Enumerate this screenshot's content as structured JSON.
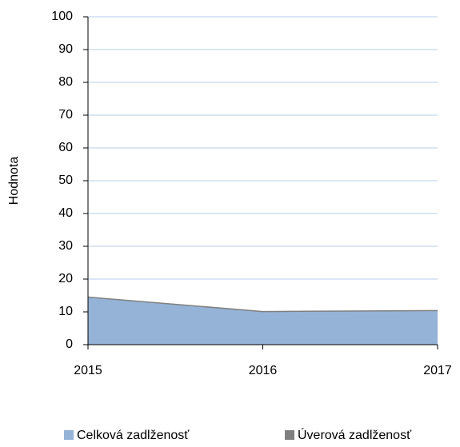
{
  "chart_data": {
    "type": "area",
    "y_label": "Hodnota",
    "x": [
      "2015",
      "2016",
      "2017"
    ],
    "series": [
      {
        "name": "Celková zadlženosť",
        "color": "#95b3d7",
        "values": [
          14.5,
          10.1,
          10.4
        ]
      },
      {
        "name": "Úverová zadlženosť",
        "color": "#808080",
        "values": [
          14.5,
          10.1,
          10.4
        ]
      }
    ],
    "ylim": [
      0,
      100
    ],
    "yticks": [
      0,
      10,
      20,
      30,
      40,
      50,
      60,
      70,
      80,
      90,
      100
    ],
    "grid": true
  }
}
